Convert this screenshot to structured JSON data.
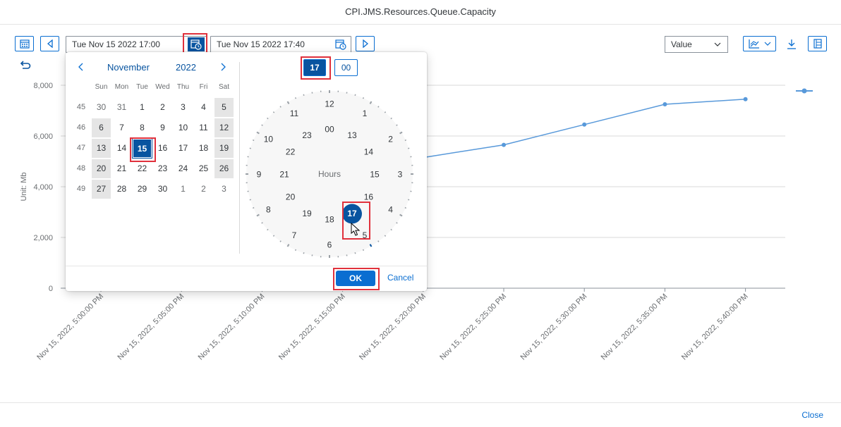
{
  "window": {
    "title": "CPI.JMS.Resources.Queue.Capacity",
    "close_label": "Close"
  },
  "toolbar": {
    "start_datetime": "Tue Nov 15 2022 17:00",
    "end_datetime": "Tue Nov 15 2022 17:40",
    "measure_select": "Value",
    "icons": [
      "calendar-icon",
      "prev-icon",
      "date-time-picker-icon",
      "next-icon",
      "chart-type-icon",
      "download-icon",
      "table-view-icon",
      "undo-icon"
    ]
  },
  "calendar": {
    "month": "November",
    "year": "2022",
    "weekdays": [
      "Sun",
      "Mon",
      "Tue",
      "Wed",
      "Thu",
      "Fri",
      "Sat"
    ],
    "weeks": [
      {
        "num": "45",
        "days": [
          "30",
          "31",
          "1",
          "2",
          "3",
          "4",
          "5"
        ]
      },
      {
        "num": "46",
        "days": [
          "6",
          "7",
          "8",
          "9",
          "10",
          "11",
          "12"
        ]
      },
      {
        "num": "47",
        "days": [
          "13",
          "14",
          "15",
          "16",
          "17",
          "18",
          "19"
        ]
      },
      {
        "num": "48",
        "days": [
          "20",
          "21",
          "22",
          "23",
          "24",
          "25",
          "26"
        ]
      },
      {
        "num": "49",
        "days": [
          "27",
          "28",
          "29",
          "30",
          "1",
          "2",
          "3"
        ]
      }
    ],
    "selected_day": "15"
  },
  "clock": {
    "hour_value": "17",
    "minute_value": "00",
    "center_label": "Hours",
    "outer_hours": [
      "12",
      "1",
      "2",
      "3",
      "4",
      "5",
      "6",
      "7",
      "8",
      "9",
      "10",
      "11"
    ],
    "inner_hours": [
      "00",
      "13",
      "14",
      "15",
      "16",
      "17",
      "18",
      "19",
      "20",
      "21",
      "22",
      "23"
    ],
    "selected_hour": "17",
    "accent": "#0854a0"
  },
  "buttons": {
    "ok": "OK",
    "cancel": "Cancel"
  },
  "chart_data": {
    "type": "line",
    "ylabel": "Unit: Mb",
    "ylim": [
      0,
      8000
    ],
    "y_ticks": [
      "0",
      "2,000",
      "4,000",
      "6,000",
      "8,000"
    ],
    "x": [
      "Nov 15, 2022, 5:00:00 PM",
      "Nov 15, 2022, 5:05:00 PM",
      "Nov 15, 2022, 5:10:00 PM",
      "Nov 15, 2022, 5:15:00 PM",
      "Nov 15, 2022, 5:20:00 PM",
      "Nov 15, 2022, 5:25:00 PM",
      "Nov 15, 2022, 5:30:00 PM",
      "Nov 15, 2022, 5:35:00 PM",
      "Nov 15, 2022, 5:40:00 PM"
    ],
    "series": [
      {
        "values": [
          null,
          null,
          null,
          null,
          5150,
          5650,
          6450,
          7250,
          7450
        ],
        "color": "#5899da"
      }
    ],
    "grid": true,
    "legend": "right"
  }
}
